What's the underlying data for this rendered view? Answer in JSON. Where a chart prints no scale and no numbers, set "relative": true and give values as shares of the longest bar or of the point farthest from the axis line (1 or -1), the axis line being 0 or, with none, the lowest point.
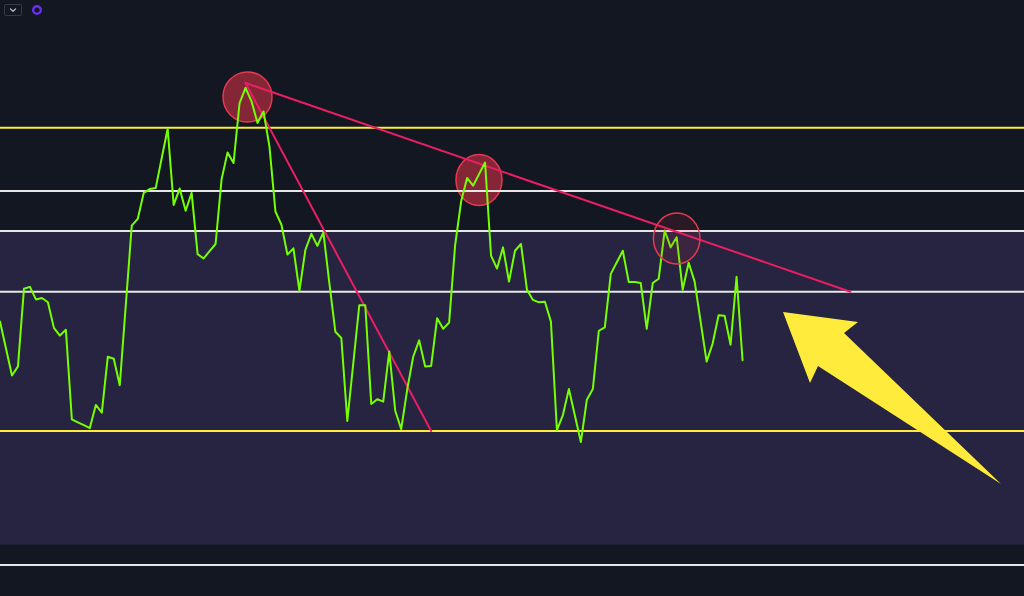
{
  "chart_data": {
    "type": "line",
    "relative": true,
    "marker": "none",
    "categories": [
      null,
      null,
      null,
      null,
      null,
      null,
      null,
      null,
      null,
      null,
      null,
      null,
      null,
      null,
      null,
      null,
      null,
      null,
      null,
      null,
      null,
      null,
      null,
      null,
      null,
      null,
      null,
      null,
      null,
      null,
      null,
      null,
      null,
      null,
      null,
      null,
      null,
      null,
      null,
      null,
      null,
      null,
      null,
      null,
      null,
      null,
      null,
      null,
      null,
      null,
      null,
      null,
      null,
      null,
      null,
      null,
      null,
      null,
      null,
      null,
      null,
      null,
      null,
      null,
      null,
      null,
      null,
      null,
      null,
      null,
      null,
      null,
      null,
      null,
      null,
      null,
      null,
      null,
      null,
      null,
      null,
      null,
      null,
      null,
      null,
      null,
      null,
      null,
      null,
      null,
      null,
      null,
      null,
      null,
      null,
      null,
      null,
      null,
      null,
      null,
      null,
      null,
      null,
      null,
      null,
      null,
      null,
      null,
      null,
      null,
      null,
      null,
      null,
      null,
      null,
      null,
      null,
      null,
      null,
      null,
      null,
      null,
      null,
      null,
      null,
      null,
      null,
      null,
      null,
      null,
      null,
      null,
      null,
      null,
      null,
      null,
      null,
      null,
      null,
      null,
      null,
      null,
      null,
      null,
      null,
      null,
      null,
      null,
      null,
      null,
      null,
      null,
      null,
      null,
      null,
      null,
      null,
      null,
      null,
      null,
      null,
      null,
      null,
      null,
      null,
      null,
      null,
      null,
      null,
      null,
      null,
      null
    ],
    "series": [
      {
        "color": "#76ff03",
        "values": [
          0.505,
          0.449,
          0.393,
          0.412,
          0.573,
          0.577,
          0.551,
          0.554,
          0.545,
          0.492,
          0.476,
          0.488,
          0.302,
          0.296,
          0.29,
          0.284,
          0.332,
          0.316,
          0.432,
          0.428,
          0.373,
          0.538,
          0.704,
          0.718,
          0.772,
          0.78,
          0.782,
          0.844,
          0.905,
          0.747,
          0.781,
          0.735,
          0.772,
          0.645,
          0.636,
          0.651,
          0.666,
          0.8,
          0.856,
          0.834,
          0.958,
          0.99,
          0.962,
          0.917,
          0.941,
          0.868,
          0.733,
          0.706,
          0.644,
          0.657,
          0.569,
          0.654,
          0.687,
          0.662,
          0.69,
          0.585,
          0.484,
          0.471,
          0.299,
          0.419,
          0.539,
          0.539,
          0.334,
          0.344,
          0.339,
          0.443,
          0.32,
          0.282,
          0.364,
          0.432,
          0.466,
          0.412,
          0.413,
          0.512,
          0.49,
          0.503,
          0.663,
          0.754,
          0.803,
          0.787,
          0.811,
          0.835,
          0.642,
          0.615,
          0.659,
          0.588,
          0.652,
          0.666,
          0.571,
          0.55,
          0.545,
          0.546,
          0.505,
          0.28,
          0.311,
          0.365,
          0.31,
          0.255,
          0.343,
          0.365,
          0.486,
          0.493,
          0.604,
          0.628,
          0.652,
          0.587,
          0.587,
          0.585,
          0.49,
          0.585,
          0.594,
          0.694,
          0.659,
          0.68,
          0.571,
          0.627,
          0.588,
          0.505,
          0.422,
          0.459,
          0.518,
          0.517,
          0.457,
          0.598,
          0.425,
          null,
          null,
          null,
          null,
          null,
          null,
          null,
          null,
          null,
          null,
          null,
          null,
          null,
          null,
          null,
          null,
          null,
          null,
          null,
          null,
          null,
          null,
          null,
          null,
          null,
          null,
          null,
          null,
          null,
          null,
          null,
          null,
          null,
          null,
          null,
          null,
          null,
          null,
          null,
          null,
          null,
          null,
          null,
          null,
          null,
          null,
          null
        ]
      },
      {
        "color": "#e91e63",
        "values": [
          null,
          null,
          null,
          null,
          null,
          null,
          null,
          null,
          null,
          null,
          null,
          null,
          null,
          null,
          null,
          null,
          null,
          null,
          null,
          null,
          null,
          null,
          null,
          null,
          null,
          null,
          null,
          null,
          null,
          null,
          null,
          null,
          null,
          null,
          null,
          null,
          null,
          null,
          null,
          null,
          null,
          1,
          null,
          null,
          null,
          null,
          null,
          null,
          null,
          null,
          null,
          null,
          null,
          null,
          null,
          null,
          null,
          null,
          null,
          null,
          null,
          null,
          null,
          null,
          null,
          null,
          null,
          null,
          null,
          null,
          null,
          null,
          0.278,
          null,
          null,
          null,
          null,
          null,
          null,
          null,
          null,
          null,
          null,
          null,
          null,
          null,
          null,
          null,
          null,
          null,
          null,
          null,
          null,
          null,
          null,
          null,
          null,
          null,
          null,
          null,
          null,
          null,
          null,
          null,
          null,
          null,
          null,
          null,
          null,
          null,
          null,
          null,
          null,
          null,
          null,
          null,
          null,
          null,
          null,
          null,
          null,
          null,
          null,
          null,
          null,
          null,
          null,
          null,
          null,
          null,
          null,
          null,
          null,
          null,
          null,
          null,
          null,
          null,
          null,
          null,
          null,
          null,
          null,
          null,
          null,
          null,
          null,
          null,
          null,
          null,
          null,
          null,
          null,
          null,
          null,
          null,
          null,
          null,
          null,
          null,
          null,
          null,
          null,
          null,
          null,
          null,
          null,
          null,
          null,
          null,
          null,
          null
        ]
      },
      {
        "color": "#e91e63",
        "values": [
          null,
          null,
          null,
          null,
          null,
          null,
          null,
          null,
          null,
          null,
          null,
          null,
          null,
          null,
          null,
          null,
          null,
          null,
          null,
          null,
          null,
          null,
          null,
          null,
          null,
          null,
          null,
          null,
          null,
          null,
          null,
          null,
          null,
          null,
          null,
          null,
          null,
          null,
          null,
          null,
          null,
          1,
          null,
          null,
          null,
          null,
          null,
          null,
          null,
          null,
          null,
          null,
          null,
          null,
          null,
          null,
          null,
          null,
          null,
          null,
          null,
          null,
          null,
          null,
          null,
          null,
          null,
          null,
          null,
          null,
          null,
          null,
          null,
          null,
          null,
          null,
          null,
          null,
          null,
          null,
          null,
          null,
          null,
          null,
          null,
          null,
          null,
          null,
          null,
          null,
          null,
          null,
          null,
          null,
          null,
          null,
          null,
          null,
          null,
          null,
          null,
          null,
          null,
          null,
          null,
          null,
          null,
          null,
          null,
          null,
          null,
          null,
          null,
          null,
          null,
          null,
          null,
          null,
          null,
          null,
          null,
          null,
          null,
          null,
          null,
          null,
          null,
          null,
          null,
          null,
          null,
          null,
          null,
          null,
          null,
          null,
          null,
          null,
          null,
          null,
          null,
          null,
          0.567,
          null,
          null,
          null,
          null,
          null,
          null,
          null,
          null,
          null,
          null,
          null,
          null,
          null,
          null,
          null,
          null,
          null,
          null,
          null,
          null,
          null,
          null,
          null,
          null,
          null,
          null,
          null,
          null,
          null
        ]
      }
    ],
    "bands": [
      {
        "axis": "y",
        "from": 0.693,
        "to": 0.042,
        "color": "#262440"
      }
    ],
    "ref_lines": [
      {
        "axis": "y",
        "value": 0.907,
        "color": "#ffeb3b"
      },
      {
        "axis": "y",
        "value": 0.776,
        "color": "#e6e6e6"
      },
      {
        "axis": "y",
        "value": 0.693,
        "color": "#e6e6e6"
      },
      {
        "axis": "y",
        "value": 0.567,
        "color": "#e6e6e6"
      },
      {
        "axis": "y",
        "value": 0.278,
        "color": "#ffeb3b"
      }
    ]
  }
}
